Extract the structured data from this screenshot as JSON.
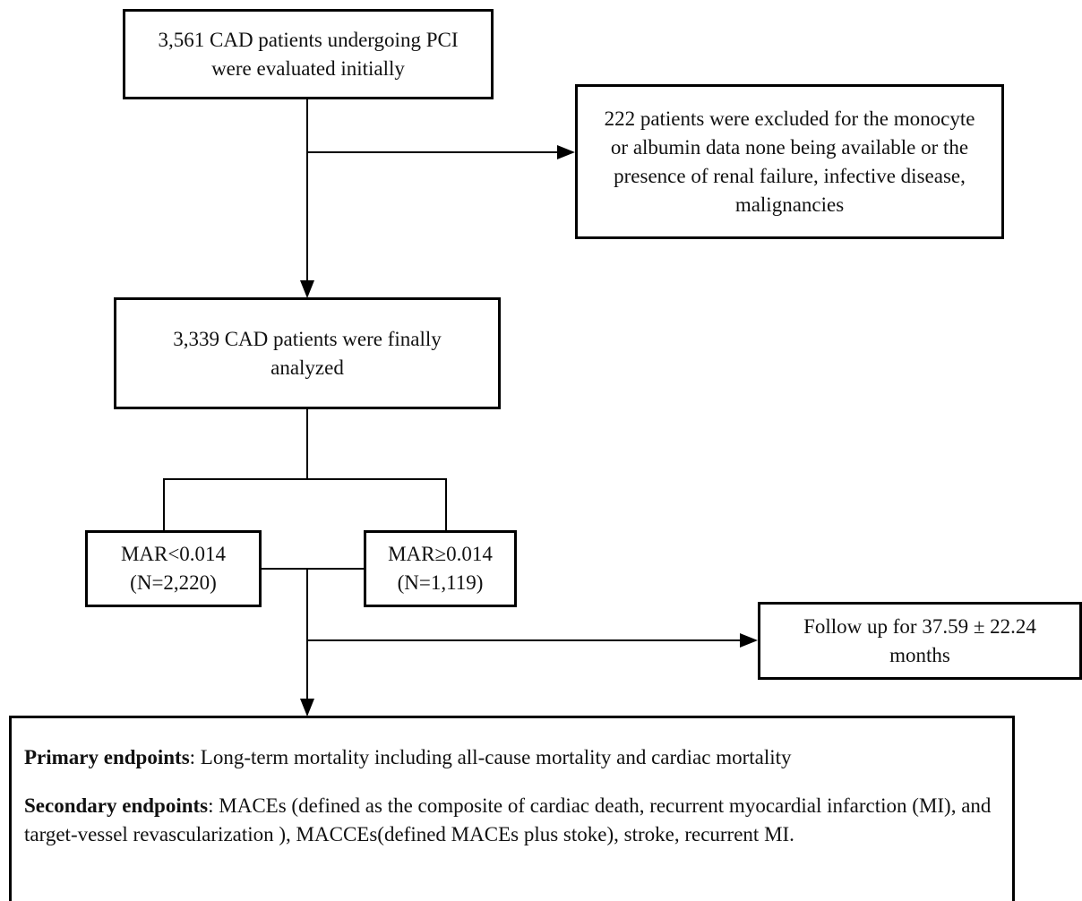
{
  "nodes": [
    {
      "text": "3,561 CAD patients undergoing PCI were evaluated initially"
    },
    {
      "text": "222 patients were excluded for the monocyte or albumin data none being available or the presence of renal failure, infective disease, malignancies"
    },
    {
      "text": "3,339 CAD patients were finally analyzed"
    },
    {
      "text": "MAR<0.014 (N=2,220)"
    },
    {
      "text": "MAR≥0.014 (N=1,119)"
    },
    {
      "text": "Follow up for 37.59 ± 22.24 months"
    }
  ],
  "endpoints": [
    {
      "label": "Primary endpoints",
      "text": ": Long-term mortality including all-cause mortality and cardiac mortality"
    },
    {
      "label": "Secondary endpoints",
      "text": ": MACEs (defined as the composite of cardiac death, recurrent myocardial infarction (MI), and target-vessel revascularization ), MACCEs(defined MACEs plus stoke), stroke, recurrent MI."
    }
  ]
}
